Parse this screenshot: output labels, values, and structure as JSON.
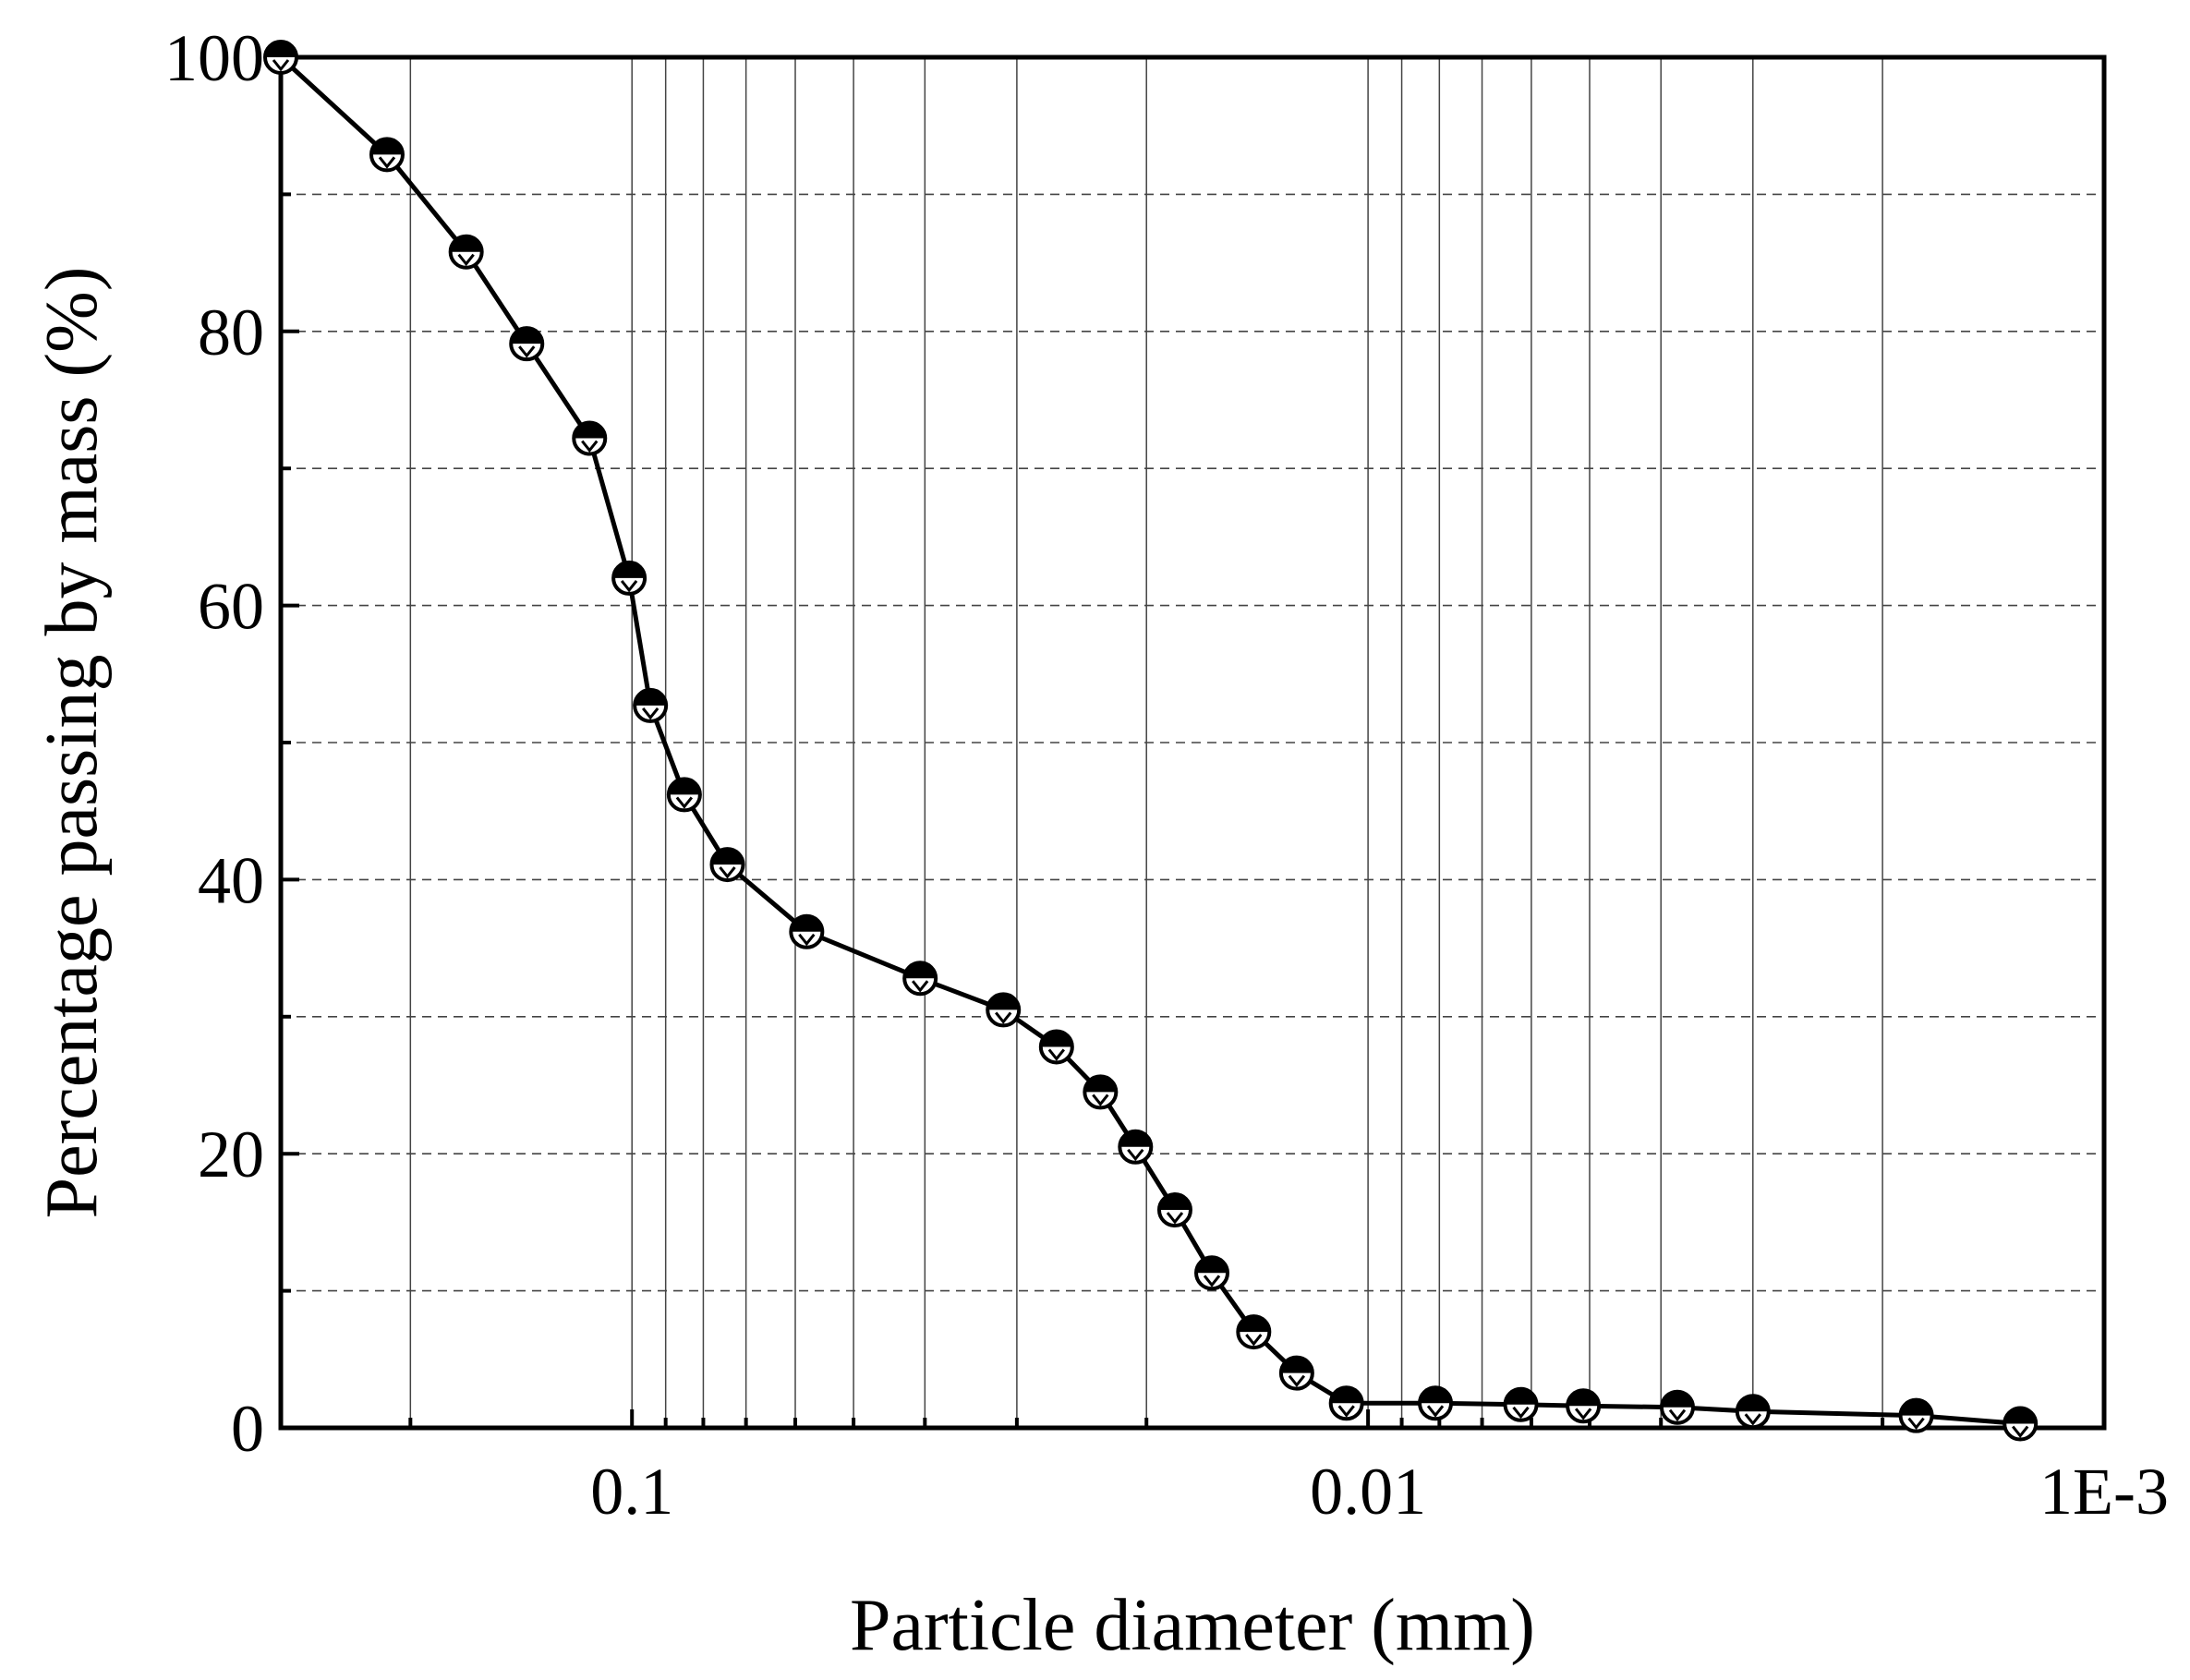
{
  "chart_data": {
    "type": "line",
    "title": "",
    "xlabel": "Particle diameter (mm)",
    "ylabel": "Percentage passing by mass (%)",
    "x_scale": "log",
    "x_reversed": true,
    "xlim": [
      0.3,
      0.001
    ],
    "ylim": [
      0,
      100
    ],
    "x_ticks": [
      {
        "value": 0.1,
        "label": "0.1"
      },
      {
        "value": 0.01,
        "label": "0.01"
      },
      {
        "value": 0.001,
        "label": "1E-3"
      }
    ],
    "y_ticks": [
      {
        "value": 0,
        "label": "0"
      },
      {
        "value": 20,
        "label": "20"
      },
      {
        "value": 40,
        "label": "40"
      },
      {
        "value": 60,
        "label": "60"
      },
      {
        "value": 80,
        "label": "80"
      },
      {
        "value": 100,
        "label": "100"
      }
    ],
    "y_minor_ticks": [
      10,
      30,
      50,
      70,
      90
    ],
    "grid": {
      "horizontal": "dashed",
      "vertical": "solid-minor"
    },
    "legend": "none",
    "colors": {
      "line": "#000000",
      "marker": "#000000",
      "grid": "#444444"
    },
    "series": [
      {
        "marker": "half-filled-circle",
        "points": [
          {
            "x": 0.3,
            "y": 100
          },
          {
            "x": 0.2152,
            "y": 92.9
          },
          {
            "x": 0.168,
            "y": 85.8
          },
          {
            "x": 0.139,
            "y": 79.1
          },
          {
            "x": 0.1142,
            "y": 72.2
          },
          {
            "x": 0.1009,
            "y": 62.0
          },
          {
            "x": 0.0944,
            "y": 52.7
          },
          {
            "x": 0.0849,
            "y": 46.2
          },
          {
            "x": 0.0742,
            "y": 41.1
          },
          {
            "x": 0.0579,
            "y": 36.2
          },
          {
            "x": 0.0406,
            "y": 32.8
          },
          {
            "x": 0.0313,
            "y": 30.5
          },
          {
            "x": 0.0265,
            "y": 27.8
          },
          {
            "x": 0.0231,
            "y": 24.5
          },
          {
            "x": 0.0207,
            "y": 20.5
          },
          {
            "x": 0.0183,
            "y": 15.9
          },
          {
            "x": 0.0163,
            "y": 11.3
          },
          {
            "x": 0.0143,
            "y": 7.0
          },
          {
            "x": 0.0125,
            "y": 4.0
          },
          {
            "x": 0.0107,
            "y": 1.8
          },
          {
            "x": 0.0081,
            "y": 1.8
          },
          {
            "x": 0.0062,
            "y": 1.7
          },
          {
            "x": 0.0051,
            "y": 1.6
          },
          {
            "x": 0.0038,
            "y": 1.5
          },
          {
            "x": 0.003,
            "y": 1.2
          },
          {
            "x": 0.0018,
            "y": 0.9
          },
          {
            "x": 0.0013,
            "y": 0.3
          }
        ]
      }
    ]
  }
}
